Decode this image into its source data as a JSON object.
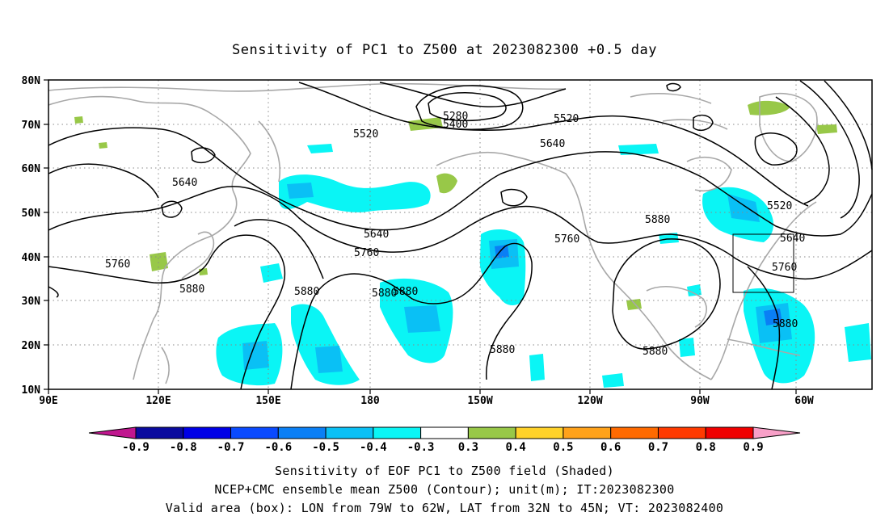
{
  "title": "Sensitivity of PC1 to Z500 at 2023082300 +0.5 day",
  "map": {
    "lat_labels": [
      "80N",
      "70N",
      "60N",
      "50N",
      "40N",
      "30N",
      "20N",
      "10N"
    ],
    "lon_labels": [
      "90E",
      "120E",
      "150E",
      "180",
      "150W",
      "120W",
      "90W",
      "60W"
    ],
    "contour_labels": [
      "5280",
      "5400",
      "5520",
      "5520",
      "5640",
      "5520",
      "5640",
      "5640",
      "5760",
      "5880",
      "5640",
      "5520",
      "5640",
      "5760",
      "5880",
      "5880",
      "5880",
      "5880",
      "5760",
      "5760",
      "5880",
      "5880",
      "5880"
    ],
    "box": {
      "lon_from": "79W",
      "lon_to": "62W",
      "lat_from": "32N",
      "lat_to": "45N"
    }
  },
  "colorbar": {
    "labels": [
      "-0.9",
      "-0.8",
      "-0.7",
      "-0.6",
      "-0.5",
      "-0.4",
      "-0.3",
      "0.3",
      "0.4",
      "0.5",
      "0.6",
      "0.7",
      "0.8",
      "0.9"
    ],
    "colors": [
      "#c0178f",
      "#0a0a9e",
      "#0000e6",
      "#0a4aff",
      "#0a7ff5",
      "#0ac0f5",
      "#0af5f5",
      "#ffffff",
      "#98c848",
      "#ffd22a",
      "#ffa21a",
      "#ff6a00",
      "#ff3a00",
      "#f00000",
      "#f8a0c8"
    ]
  },
  "captions": [
    "Sensitivity of EOF PC1 to Z500 field (Shaded)",
    "NCEP+CMC ensemble mean Z500 (Contour); unit(m); IT:2023082300",
    "Valid area (box): LON from 79W to 62W, LAT from 32N to 45N; VT: 2023082400"
  ]
}
